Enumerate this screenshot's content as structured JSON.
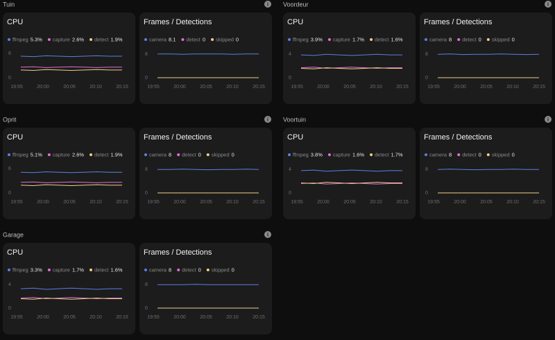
{
  "sections": [
    {
      "title": "Tuin",
      "charts": [
        {
          "type": "line",
          "title": "CPU",
          "xticks": [
            "19:55",
            "20:00",
            "20:05",
            "20:10",
            "20:15"
          ],
          "ylim": [
            0,
            6.5
          ],
          "yticks": [
            0,
            6
          ],
          "series": [
            {
              "name": "ffmpeg",
              "current": "5.3%",
              "color": "#5b7fe6",
              "values": [
                5.3,
                5.2,
                5.4,
                5.3,
                5.2,
                5.3,
                5.4,
                5.3,
                5.3
              ]
            },
            {
              "name": "capture",
              "current": "2.6%",
              "color": "#e06fd6",
              "values": [
                2.6,
                2.7,
                2.5,
                2.6,
                2.7,
                2.6,
                2.5,
                2.6,
                2.6
              ]
            },
            {
              "name": "detect",
              "current": "1.9%",
              "color": "#f0cf86",
              "values": [
                1.9,
                1.8,
                2.0,
                1.9,
                1.8,
                1.9,
                2.0,
                1.9,
                1.9
              ]
            }
          ]
        },
        {
          "type": "line",
          "title": "Frames / Detections",
          "xticks": [
            "19:55",
            "20:00",
            "20:05",
            "20:10",
            "20:15"
          ],
          "ylim": [
            0,
            9
          ],
          "yticks": [
            0,
            8
          ],
          "series": [
            {
              "name": "camera",
              "current": "8.1",
              "color": "#5b7fe6",
              "values": [
                8.1,
                8.1,
                8.0,
                8.1,
                8.1,
                8.1,
                8.0,
                8.1,
                8.1
              ]
            },
            {
              "name": "detect",
              "current": "0",
              "color": "#e06fd6",
              "values": [
                0,
                0,
                0,
                0,
                0,
                0,
                0,
                0,
                0
              ]
            },
            {
              "name": "skipped",
              "current": "0",
              "color": "#f0cf86",
              "values": [
                0,
                0,
                0,
                0,
                0,
                0,
                0,
                0,
                0
              ]
            }
          ]
        }
      ]
    },
    {
      "title": "Voordeur",
      "charts": [
        {
          "type": "line",
          "title": "CPU",
          "xticks": [
            "19:55",
            "20:00",
            "20:05",
            "20:10",
            "20:15"
          ],
          "ylim": [
            0,
            4.5
          ],
          "yticks": [
            0,
            4
          ],
          "series": [
            {
              "name": "ffmpeg",
              "current": "3.9%",
              "color": "#5b7fe6",
              "values": [
                3.9,
                3.8,
                4.0,
                3.9,
                3.8,
                3.9,
                4.0,
                3.9,
                3.9
              ]
            },
            {
              "name": "capture",
              "current": "1.7%",
              "color": "#e06fd6",
              "values": [
                1.7,
                1.8,
                1.6,
                1.7,
                1.8,
                1.7,
                1.6,
                1.7,
                1.7
              ]
            },
            {
              "name": "detect",
              "current": "1.6%",
              "color": "#f0cf86",
              "values": [
                1.6,
                1.5,
                1.7,
                1.6,
                1.5,
                1.6,
                1.7,
                1.6,
                1.6
              ]
            }
          ]
        },
        {
          "type": "line",
          "title": "Frames / Detections",
          "xticks": [
            "19:55",
            "20:00",
            "20:05",
            "20:10",
            "20:15"
          ],
          "ylim": [
            0,
            9
          ],
          "yticks": [
            0,
            8
          ],
          "series": [
            {
              "name": "camera",
              "current": "8",
              "color": "#5b7fe6",
              "values": [
                8,
                8.1,
                7.9,
                8,
                8,
                8.1,
                8,
                7.9,
                8
              ]
            },
            {
              "name": "detect",
              "current": "0",
              "color": "#e06fd6",
              "values": [
                0,
                0,
                0,
                0,
                0,
                0,
                0,
                0,
                0
              ]
            },
            {
              "name": "skipped",
              "current": "0",
              "color": "#f0cf86",
              "values": [
                0,
                0,
                0,
                0,
                0,
                0,
                0,
                0,
                0
              ]
            }
          ]
        }
      ]
    },
    {
      "title": "Oprit",
      "charts": [
        {
          "type": "line",
          "title": "CPU",
          "xticks": [
            "19:55",
            "20:00",
            "20:05",
            "20:10",
            "20:15"
          ],
          "ylim": [
            0,
            6.5
          ],
          "yticks": [
            0,
            6
          ],
          "series": [
            {
              "name": "ffmpeg",
              "current": "5.1%",
              "color": "#5b7fe6",
              "values": [
                5.1,
                5.0,
                5.2,
                5.1,
                5.0,
                5.1,
                5.2,
                5.1,
                5.1
              ]
            },
            {
              "name": "capture",
              "current": "2.6%",
              "color": "#e06fd6",
              "values": [
                2.6,
                2.7,
                2.5,
                2.6,
                2.7,
                2.6,
                2.5,
                2.6,
                2.6
              ]
            },
            {
              "name": "detect",
              "current": "1.9%",
              "color": "#f0cf86",
              "values": [
                1.9,
                1.8,
                2.0,
                1.9,
                1.8,
                1.9,
                2.0,
                1.9,
                1.9
              ]
            }
          ]
        },
        {
          "type": "line",
          "title": "Frames / Detections",
          "xticks": [
            "19:55",
            "20:00",
            "20:05",
            "20:10",
            "20:15"
          ],
          "ylim": [
            0,
            9
          ],
          "yticks": [
            0,
            8
          ],
          "series": [
            {
              "name": "camera",
              "current": "8",
              "color": "#5b7fe6",
              "values": [
                8,
                8,
                8.1,
                8,
                7.9,
                8,
                8,
                8.1,
                8
              ]
            },
            {
              "name": "detect",
              "current": "0",
              "color": "#e06fd6",
              "values": [
                0,
                0,
                0,
                0,
                0,
                0,
                0,
                0,
                0
              ]
            },
            {
              "name": "skipped",
              "current": "0",
              "color": "#f0cf86",
              "values": [
                0,
                0,
                0,
                0,
                0,
                0,
                0,
                0,
                0
              ]
            }
          ]
        }
      ]
    },
    {
      "title": "Voortuin",
      "charts": [
        {
          "type": "line",
          "title": "CPU",
          "xticks": [
            "19:55",
            "20:00",
            "20:05",
            "20:10",
            "20:15"
          ],
          "ylim": [
            0,
            4.5
          ],
          "yticks": [
            0,
            4
          ],
          "series": [
            {
              "name": "ffmpeg",
              "current": "3.8%",
              "color": "#5b7fe6",
              "values": [
                3.8,
                3.9,
                3.7,
                3.8,
                3.9,
                3.8,
                3.7,
                3.8,
                3.8
              ]
            },
            {
              "name": "capture",
              "current": "1.6%",
              "color": "#e06fd6",
              "values": [
                1.6,
                1.7,
                1.5,
                1.6,
                1.7,
                1.6,
                1.5,
                1.6,
                1.6
              ]
            },
            {
              "name": "detect",
              "current": "1.7%",
              "color": "#f0cf86",
              "values": [
                1.7,
                1.6,
                1.8,
                1.7,
                1.6,
                1.7,
                1.8,
                1.7,
                1.7
              ]
            }
          ]
        },
        {
          "type": "line",
          "title": "Frames / Detections",
          "xticks": [
            "19:55",
            "20:00",
            "20:05",
            "20:10",
            "20:15"
          ],
          "ylim": [
            0,
            9
          ],
          "yticks": [
            0,
            8
          ],
          "series": [
            {
              "name": "camera",
              "current": "8",
              "color": "#5b7fe6",
              "values": [
                8,
                8.1,
                8,
                7.9,
                8,
                8,
                8.1,
                8,
                8
              ]
            },
            {
              "name": "detect",
              "current": "0",
              "color": "#e06fd6",
              "values": [
                0,
                0,
                0,
                0,
                0,
                0,
                0,
                0,
                0
              ]
            },
            {
              "name": "skipped",
              "current": "0",
              "color": "#f0cf86",
              "values": [
                0,
                0,
                0,
                0,
                0,
                0,
                0,
                0,
                0
              ]
            }
          ]
        }
      ]
    },
    {
      "title": "Garage",
      "charts": [
        {
          "type": "line",
          "title": "CPU",
          "xticks": [
            "19:55",
            "20:00",
            "20:05",
            "20:10",
            "20:15"
          ],
          "ylim": [
            0,
            4.5
          ],
          "yticks": [
            0,
            4
          ],
          "series": [
            {
              "name": "ffmpeg",
              "current": "3.3%",
              "color": "#5b7fe6",
              "values": [
                3.3,
                3.4,
                3.2,
                3.3,
                3.4,
                3.3,
                3.2,
                3.3,
                3.3
              ]
            },
            {
              "name": "capture",
              "current": "1.7%",
              "color": "#e06fd6",
              "values": [
                1.7,
                1.8,
                1.6,
                1.7,
                1.8,
                1.7,
                1.6,
                1.7,
                1.7
              ]
            },
            {
              "name": "detect",
              "current": "1.6%",
              "color": "#f0cf86",
              "values": [
                1.6,
                1.5,
                1.7,
                1.6,
                1.5,
                1.6,
                1.7,
                1.6,
                1.6
              ]
            }
          ]
        },
        {
          "type": "line",
          "title": "Frames / Detections",
          "xticks": [
            "19:55",
            "20:00",
            "20:05",
            "20:10",
            "20:15"
          ],
          "ylim": [
            0,
            9
          ],
          "yticks": [
            0,
            8
          ],
          "series": [
            {
              "name": "camera",
              "current": "8",
              "color": "#5b7fe6",
              "values": [
                8,
                8,
                8,
                8.1,
                8,
                8,
                8,
                8,
                8
              ]
            },
            {
              "name": "detect",
              "current": "0",
              "color": "#e06fd6",
              "values": [
                0,
                0,
                0,
                0,
                0,
                0,
                0,
                0,
                0
              ]
            },
            {
              "name": "skipped",
              "current": "0",
              "color": "#f0cf86",
              "values": [
                0,
                0,
                0,
                0,
                0,
                0,
                0,
                0,
                0
              ]
            }
          ]
        }
      ]
    }
  ]
}
